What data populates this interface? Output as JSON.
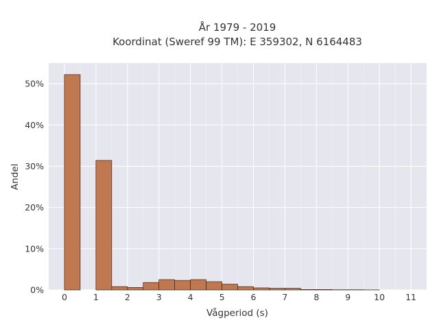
{
  "chart_data": {
    "type": "bar",
    "title_lines": [
      "År 1979 - 2019",
      "Koordinat (Sweref 99 TM): E 359302, N 6164483"
    ],
    "xlabel": "Vågperiod (s)",
    "ylabel": "Andel",
    "bin_width": 0.5,
    "x": [
      0,
      1,
      1.5,
      2,
      2.5,
      3,
      3.5,
      4,
      4.5,
      5,
      5.5,
      6,
      6.5,
      7,
      7.5,
      8,
      8.5,
      9,
      9.5
    ],
    "values": [
      52.2,
      31.4,
      0.8,
      0.6,
      1.8,
      2.5,
      2.3,
      2.5,
      2.0,
      1.4,
      0.8,
      0.5,
      0.4,
      0.4,
      0.1,
      0.1,
      0.05,
      0.05,
      0.02
    ],
    "xlim": [
      -0.5,
      11.5
    ],
    "ylim": [
      0,
      55
    ],
    "x_ticks": [
      "0",
      "1",
      "2",
      "3",
      "4",
      "5",
      "6",
      "7",
      "8",
      "9",
      "10",
      "11"
    ],
    "y_ticks": [
      "0%",
      "10%",
      "20%",
      "30%",
      "40%",
      "50%"
    ],
    "bar_color": "#c07850",
    "bar_edge_color": "#3a2418",
    "plot_background": "#e6e6ef",
    "grid": true
  }
}
